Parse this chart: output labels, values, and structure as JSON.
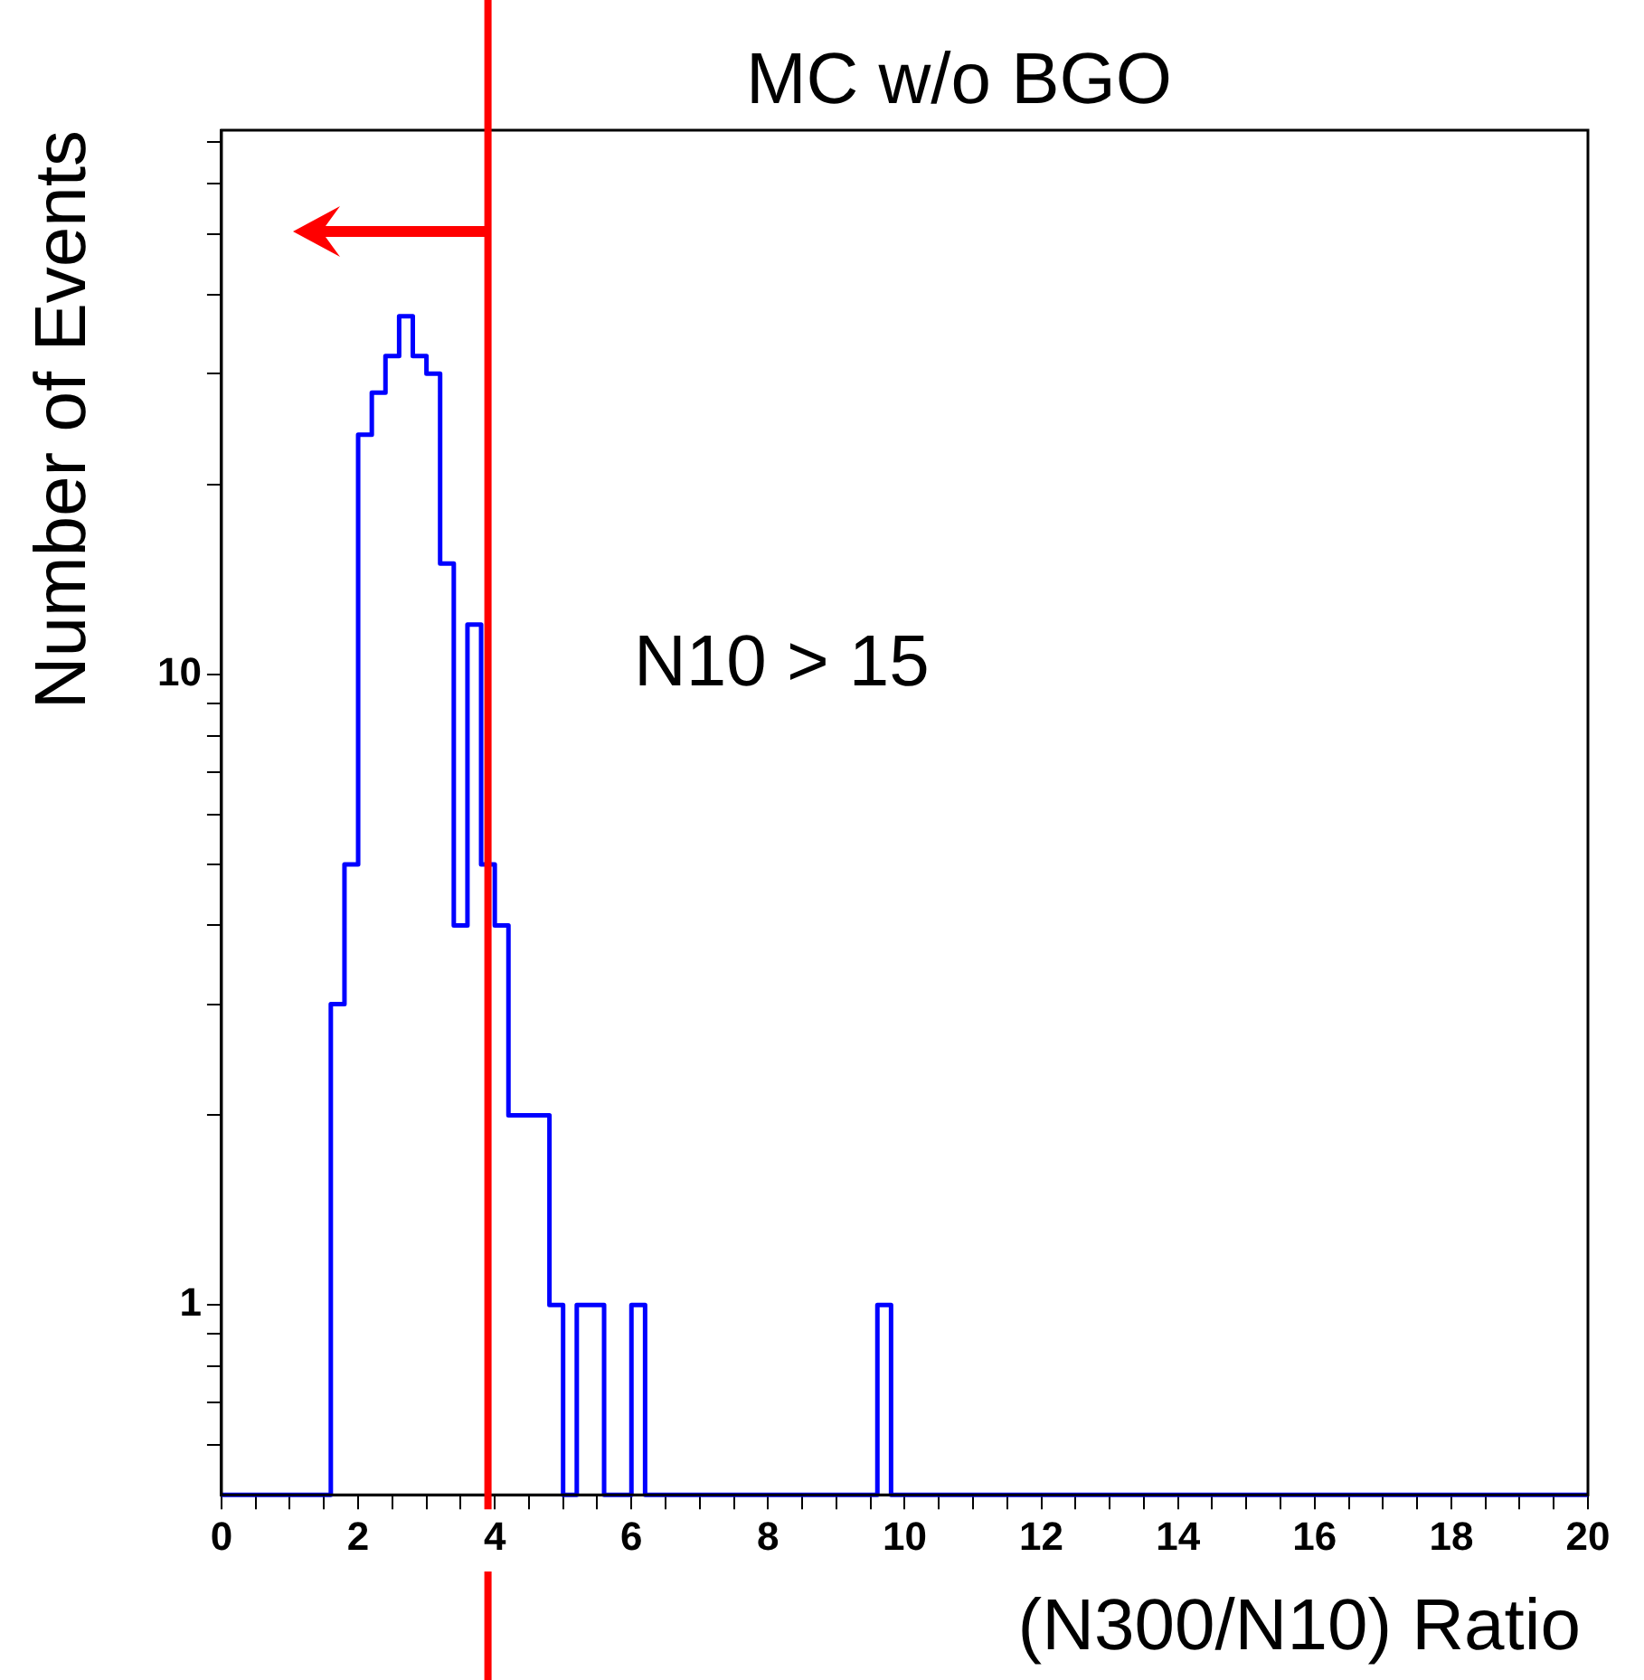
{
  "chart_data": {
    "type": "histogram",
    "title": "MC w/o BGO",
    "xlabel": "(N300/N10) Ratio",
    "ylabel": "Number of Events",
    "annotations": [
      "N10 > 15"
    ],
    "bins": [
      0,
      1.6,
      1.8,
      2.0,
      2.2,
      2.4,
      2.6,
      2.8,
      3.0,
      3.2,
      3.4,
      3.6,
      3.8,
      4.0,
      4.2,
      4.4,
      4.6,
      4.8,
      5.0,
      5.2,
      5.4,
      5.6,
      6.0,
      6.2,
      9.6,
      9.8,
      20
    ],
    "values": [
      null,
      3,
      5,
      24,
      28,
      32,
      37,
      32,
      30,
      15,
      4,
      12,
      5,
      4,
      2,
      2,
      2,
      1,
      null,
      1,
      1,
      null,
      1,
      null,
      1,
      null
    ],
    "color": "#0000ff",
    "log": true,
    "grid": false,
    "legend": false,
    "xlim": [
      0,
      20
    ],
    "xticks": [
      0,
      {
        "value": 0.5,
        "label": null
      },
      {
        "value": 1,
        "label": null
      },
      {
        "value": 1.5,
        "label": null
      },
      2,
      {
        "value": 2.5,
        "label": null
      },
      {
        "value": 3,
        "label": null
      },
      {
        "value": 3.5,
        "label": null
      },
      4,
      {
        "value": 4.5,
        "label": null
      },
      {
        "value": 5,
        "label": null
      },
      {
        "value": 5.5,
        "label": null
      },
      6,
      {
        "value": 6.5,
        "label": null
      },
      {
        "value": 7,
        "label": null
      },
      {
        "value": 7.5,
        "label": null
      },
      8,
      {
        "value": 8.5,
        "label": null
      },
      {
        "value": 9,
        "label": null
      },
      {
        "value": 9.5,
        "label": null
      },
      10,
      {
        "value": 10.5,
        "label": null
      },
      {
        "value": 11,
        "label": null
      },
      {
        "value": 11.5,
        "label": null
      },
      12,
      {
        "value": 12.5,
        "label": null
      },
      {
        "value": 13,
        "label": null
      },
      {
        "value": 13.5,
        "label": null
      },
      14,
      {
        "value": 14.5,
        "label": null
      },
      {
        "value": 15,
        "label": null
      },
      {
        "value": 15.5,
        "label": null
      },
      16,
      {
        "value": 16.5,
        "label": null
      },
      {
        "value": 17,
        "label": null
      },
      {
        "value": 17.5,
        "label": null
      },
      18,
      {
        "value": 18.5,
        "label": null
      },
      {
        "value": 19,
        "label": null
      },
      {
        "value": 19.5,
        "label": null
      },
      20
    ],
    "ylim": [
      0.5,
      73
    ],
    "yticks": [
      {
        "value": 0.6,
        "label": null
      },
      {
        "value": 0.7,
        "label": null
      },
      {
        "value": 0.8,
        "label": null
      },
      {
        "value": 0.9,
        "label": null
      },
      1,
      {
        "value": 2,
        "label": null
      },
      {
        "value": 3,
        "label": null
      },
      {
        "value": 4,
        "label": null
      },
      {
        "value": 5,
        "label": null
      },
      {
        "value": 6,
        "label": null
      },
      {
        "value": 7,
        "label": null
      },
      {
        "value": 8,
        "label": null
      },
      {
        "value": 9,
        "label": null
      },
      10,
      {
        "value": 20,
        "label": null
      },
      {
        "value": 30,
        "label": null
      },
      {
        "value": 40,
        "label": null
      },
      {
        "value": 50,
        "label": null
      },
      {
        "value": 60,
        "label": null
      },
      {
        "value": 70,
        "label": null
      }
    ],
    "ref_lines": [
      {
        "axis": "x",
        "value": 3.9,
        "color": "#ff0000"
      }
    ]
  }
}
